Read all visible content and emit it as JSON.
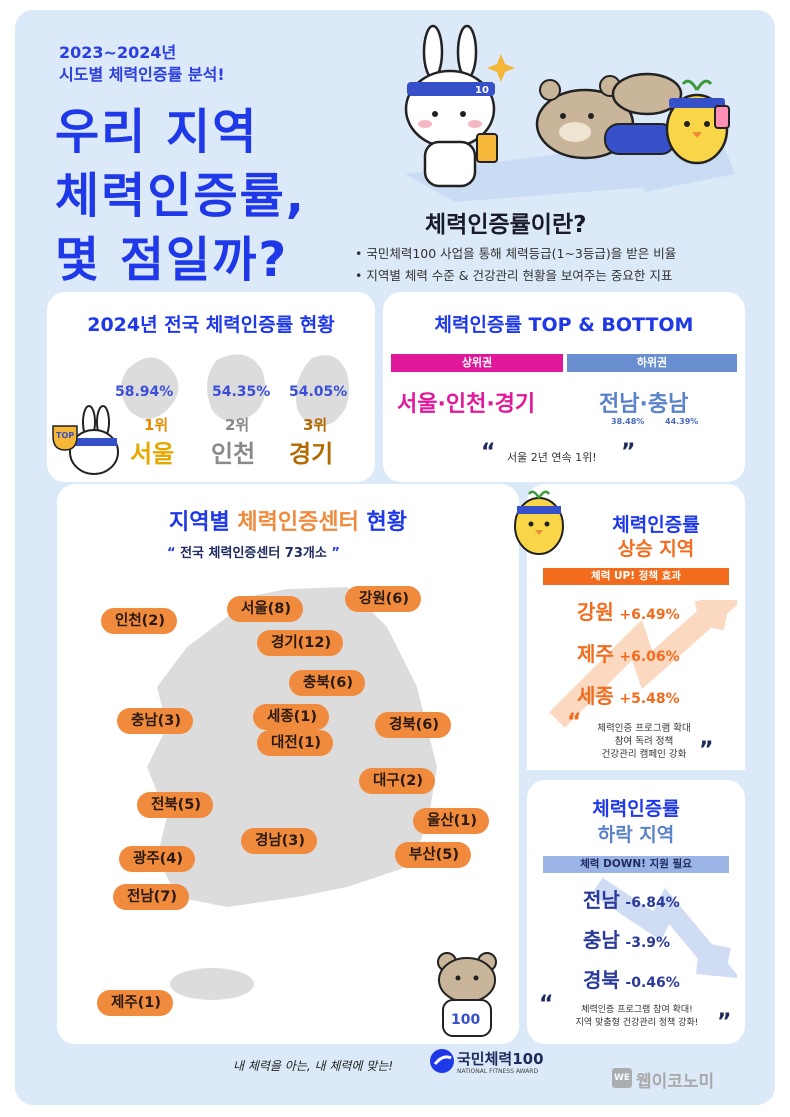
{
  "header": {
    "subtitle_line1": "2023~2024년",
    "subtitle_line2": "시도별 체력인증률 분석!",
    "headline_line1": "우리 지역",
    "headline_line2": "체력인증률,",
    "headline_line3": "몇 점일까?"
  },
  "definition": {
    "title": "체력인증률이란?",
    "bullets": [
      "• 국민체력100 사업을 통해 체력등급(1~3등급)을 받은 비율",
      "• 지역별 체력 수준 & 건강관리 현황을 보여주는 중요한 지표"
    ]
  },
  "national": {
    "title": "2024년 전국 체력인증률 현황",
    "items": [
      {
        "pct": "58.94%",
        "rank": "1위",
        "city": "서울"
      },
      {
        "pct": "54.35%",
        "rank": "2위",
        "city": "인천"
      },
      {
        "pct": "54.05%",
        "rank": "3위",
        "city": "경기"
      }
    ]
  },
  "topbottom": {
    "title": "체력인증률 TOP & BOTTOM",
    "top_label": "상위권",
    "bottom_label": "하위권",
    "top_cities": "서울·인천·경기",
    "bottom_cities": "전남·충남",
    "bottom_pct1": "38.48%",
    "bottom_pct2": "44.39%",
    "quote": "서울 2년 연속 1위!"
  },
  "centers": {
    "title_a": "지역별 ",
    "title_b": "체력인증센터",
    "title_c": " 현황",
    "subtitle": "전국 체력인증센터 73개소",
    "regions": [
      "인천(2)",
      "서울(8)",
      "강원(6)",
      "경기(12)",
      "충북(6)",
      "충남(3)",
      "세종(1)",
      "대전(1)",
      "경북(6)",
      "대구(2)",
      "전북(5)",
      "울산(1)",
      "경남(3)",
      "광주(4)",
      "부산(5)",
      "전남(7)",
      "제주(1)"
    ]
  },
  "rise": {
    "title1": "체력인증률",
    "title2": "상승 지역",
    "banner": "체력 UP! 정책 효과",
    "rows": [
      {
        "city": "강원",
        "val": "+6.49%"
      },
      {
        "city": "제주",
        "val": "+6.06%"
      },
      {
        "city": "세종",
        "val": "+5.48%"
      }
    ],
    "note1": "체력인증 프로그램 확대",
    "note2": "참여 독려 정책",
    "note3": "건강관리 캠페인 강화"
  },
  "fall": {
    "title1": "체력인증률",
    "title2": "하락 지역",
    "banner": "체력 DOWN! 지원 필요",
    "rows": [
      {
        "city": "전남",
        "val": "-6.84%"
      },
      {
        "city": "충남",
        "val": "-3.9%"
      },
      {
        "city": "경북",
        "val": "-0.46%"
      }
    ],
    "note1": "체력인증 프로그램 참여 확대!",
    "note2": "지역 맞춤형 건강관리 정책 강화!"
  },
  "footer": {
    "slogan": "내 체력을 아는, 내 체력에 맞는!",
    "brand": "국민체력100",
    "brand_sub": "NATIONAL FITNESS AWARD",
    "watermark": "웹이코노미",
    "wm_prefix": "WE"
  },
  "mascots": {
    "top_badge": "TOP",
    "bear_number": "100",
    "rabbit_band": "10"
  },
  "colors": {
    "accent_blue": "#1f39e8",
    "orange": "#f08a3c",
    "magenta": "#e0199a",
    "bg": "#dce9f8"
  }
}
